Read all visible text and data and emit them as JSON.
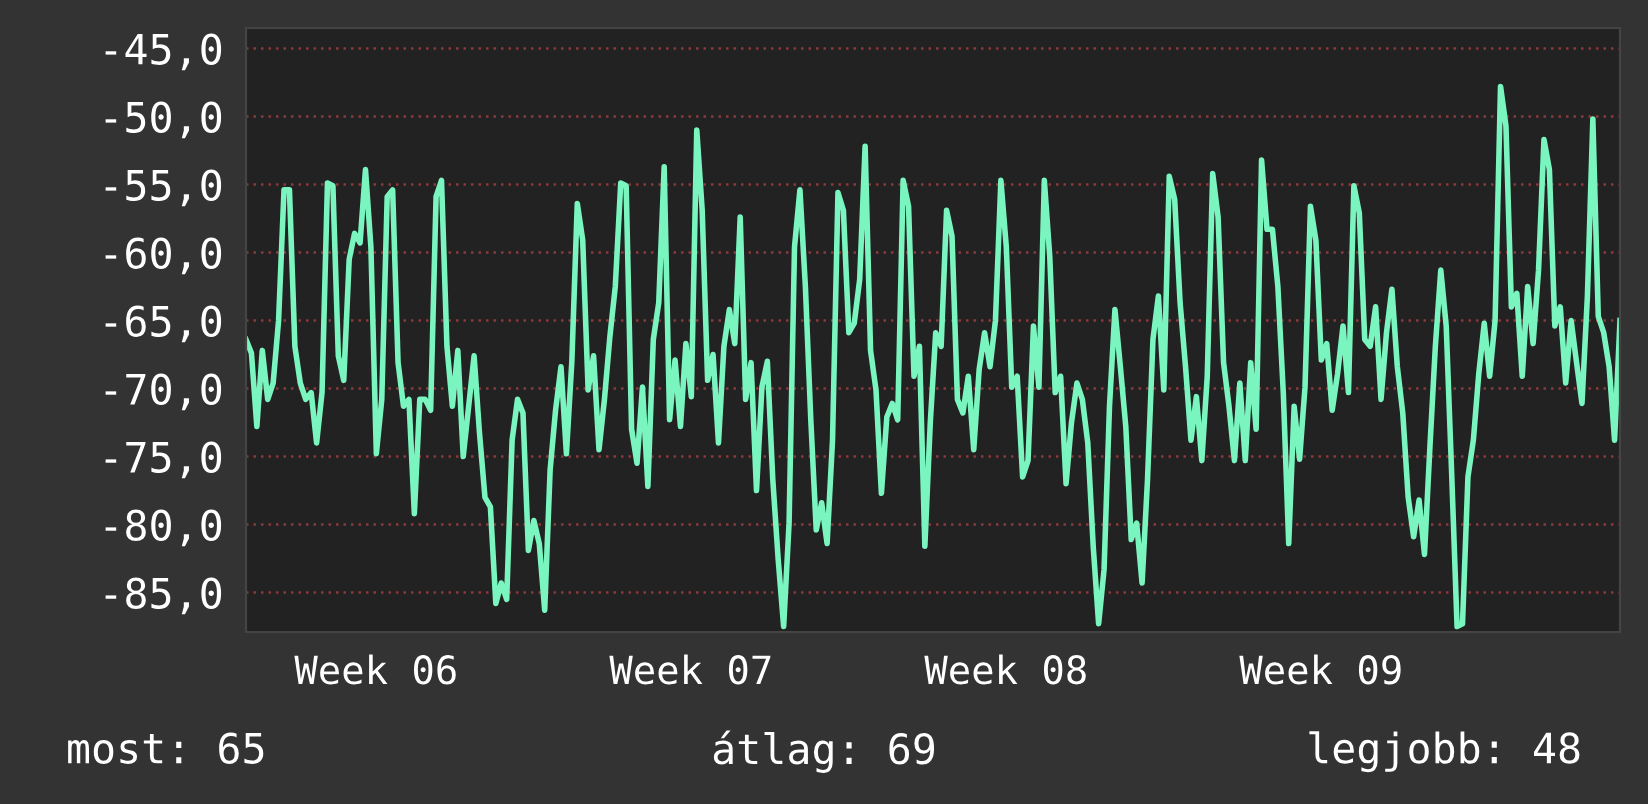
{
  "chart_data": {
    "type": "line",
    "ylim": [
      -87.9,
      -43.5
    ],
    "categories": [
      null,
      null,
      null,
      null,
      null,
      null,
      null,
      null,
      null,
      null,
      null,
      null,
      null,
      null,
      null,
      null,
      null,
      null,
      null,
      null,
      null,
      null,
      null,
      null,
      "Week 06",
      null,
      null,
      null,
      null,
      null,
      null,
      null,
      null,
      null,
      null,
      null,
      null,
      null,
      null,
      null,
      null,
      null,
      null,
      null,
      null,
      null,
      null,
      null,
      null,
      null,
      null,
      null,
      null,
      null,
      null,
      null,
      null,
      null,
      null,
      null,
      null,
      null,
      null,
      null,
      null,
      null,
      null,
      null,
      null,
      null,
      null,
      null,
      null,
      null,
      null,
      null,
      null,
      null,
      null,
      null,
      null,
      null,
      "Week 07",
      null,
      null,
      null,
      null,
      null,
      null,
      null,
      null,
      null,
      null,
      null,
      null,
      null,
      null,
      null,
      null,
      null,
      null,
      null,
      null,
      null,
      null,
      null,
      null,
      null,
      null,
      null,
      null,
      null,
      null,
      null,
      null,
      null,
      null,
      null,
      null,
      null,
      null,
      null,
      null,
      null,
      null,
      null,
      null,
      null,
      null,
      null,
      null,
      null,
      null,
      null,
      null,
      null,
      null,
      null,
      null,
      null,
      "Week 08",
      null,
      null,
      null,
      null,
      null,
      null,
      null,
      null,
      null,
      null,
      null,
      null,
      null,
      null,
      null,
      null,
      null,
      null,
      null,
      null,
      null,
      null,
      null,
      null,
      null,
      null,
      null,
      null,
      null,
      null,
      null,
      null,
      null,
      null,
      null,
      null,
      null,
      null,
      null,
      null,
      null,
      null,
      null,
      null,
      null,
      null,
      null,
      null,
      null,
      null,
      null,
      null,
      null,
      null,
      null,
      null,
      null,
      "Week 09",
      null,
      null,
      null,
      null,
      null,
      null,
      null,
      null,
      null,
      null,
      null,
      null,
      null,
      null,
      null,
      null,
      null,
      null,
      null,
      null,
      null,
      null,
      null,
      null,
      null,
      null,
      null,
      null,
      null,
      null,
      null,
      null,
      null,
      null,
      null,
      null,
      null,
      null,
      null,
      null,
      null,
      null,
      null,
      null,
      null,
      null,
      null,
      null,
      null,
      null,
      null,
      null,
      null,
      null,
      null
    ],
    "yticks": [
      {
        "value": -85,
        "label": "-85,0"
      },
      {
        "value": -80,
        "label": "-80,0"
      },
      {
        "value": -75,
        "label": "-75,0"
      },
      {
        "value": -70,
        "label": "-70,0"
      },
      {
        "value": -65,
        "label": "-65,0"
      },
      {
        "value": -60,
        "label": "-60,0"
      },
      {
        "value": -55,
        "label": "-55,0"
      },
      {
        "value": -50,
        "label": "-50,0"
      },
      {
        "value": -45,
        "label": "-45,0"
      }
    ],
    "grid": "y",
    "marker": "none",
    "line_style": "solid",
    "annotations": [
      "most: 65",
      "átlag: 69",
      "legjobb: 48"
    ],
    "series": [
      {
        "color": "#7af5c0",
        "values": [
          -66.4,
          -67.4,
          -72.8,
          -67.2,
          -70.8,
          -69.6,
          -65,
          -55.4,
          -55.4,
          -66.9,
          -69.6,
          -70.8,
          -70.3,
          -74,
          -70.3,
          -54.9,
          -55.1,
          -67.6,
          -69.4,
          -60.5,
          -58.6,
          -59.3,
          -53.9,
          -59.6,
          -74.8,
          -70.8,
          -55.9,
          -55.4,
          -68.1,
          -71.3,
          -70.8,
          -79.2,
          -70.8,
          -70.8,
          -71.6,
          -55.9,
          -54.7,
          -66.9,
          -71.3,
          -67.2,
          -75,
          -71.3,
          -67.6,
          -73.3,
          -78,
          -78.7,
          -85.8,
          -84.3,
          -85.5,
          -73.8,
          -70.8,
          -71.8,
          -81.9,
          -79.7,
          -81.4,
          -86.3,
          -76,
          -71.6,
          -68.4,
          -74.8,
          -68,
          -56.4,
          -59.1,
          -70.1,
          -67.6,
          -74.5,
          -70.8,
          -66.2,
          -62.5,
          -54.9,
          -55.1,
          -73,
          -75.5,
          -69.9,
          -77.2,
          -66.4,
          -63.7,
          -53.7,
          -72.3,
          -67.9,
          -72.8,
          -66.7,
          -70.6,
          -51,
          -56.9,
          -69.4,
          -67.5,
          -74,
          -66.9,
          -64.2,
          -66.7,
          -57.4,
          -70.8,
          -68.1,
          -77.5,
          -69.9,
          -68,
          -76.7,
          -82.6,
          -87.5,
          -79.9,
          -59.6,
          -55.4,
          -62.5,
          -72.3,
          -80.4,
          -78.4,
          -81.4,
          -73.8,
          -55.6,
          -56.9,
          -65.9,
          -65.2,
          -62,
          -52.2,
          -67.2,
          -70.1,
          -77.7,
          -72.1,
          -71.1,
          -72.3,
          -54.7,
          -56.6,
          -69.1,
          -66.9,
          -81.6,
          -72.5,
          -65.9,
          -66.9,
          -56.9,
          -58.8,
          -70.8,
          -71.8,
          -69.1,
          -74.5,
          -68.6,
          -65.9,
          -68.4,
          -65,
          -54.7,
          -59.6,
          -69.9,
          -69.1,
          -76.5,
          -75.3,
          -65.4,
          -69.9,
          -54.7,
          -60.3,
          -70.3,
          -69.1,
          -77,
          -72.5,
          -69.6,
          -70.8,
          -74,
          -81.6,
          -87.3,
          -83.3,
          -71.3,
          -64.2,
          -68.4,
          -72.8,
          -81.1,
          -79.9,
          -84.3,
          -76.7,
          -66.4,
          -63.2,
          -70.1,
          -54.4,
          -56.1,
          -63.7,
          -68.4,
          -73.8,
          -70.6,
          -75.3,
          -69.1,
          -54.2,
          -57.4,
          -68.1,
          -71.3,
          -75.3,
          -69.6,
          -75.3,
          -68.1,
          -73,
          -53.2,
          -58.3,
          -58.3,
          -62.5,
          -70.3,
          -81.4,
          -71.3,
          -75.2,
          -69.9,
          -56.6,
          -59.1,
          -67.9,
          -66.7,
          -71.6,
          -68.9,
          -65.4,
          -70.3,
          -55.1,
          -57.1,
          -66.4,
          -66.9,
          -64,
          -70.8,
          -65.9,
          -62.7,
          -68.4,
          -71.8,
          -78,
          -80.9,
          -78.2,
          -82.2,
          -74.3,
          -66.9,
          -61.3,
          -65.4,
          -76.2,
          -87.5,
          -87.3,
          -76.5,
          -73.8,
          -68.9,
          -65.2,
          -69.1,
          -65,
          -47.8,
          -50.7,
          -64,
          -63,
          -69.1,
          -62.5,
          -66.7,
          -61.3,
          -51.7,
          -53.9,
          -65.4,
          -64,
          -69.6,
          -65,
          -68.1,
          -71.1,
          -63.2,
          -50.2,
          -64.7,
          -65.9,
          -68.4,
          -73.8,
          -65
        ]
      }
    ]
  }
}
